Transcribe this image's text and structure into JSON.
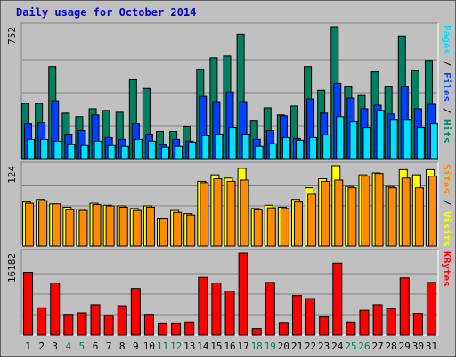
{
  "chart_data": {
    "type": "bar",
    "title": "Daily usage for October 2014",
    "categories": [
      "1",
      "2",
      "3",
      "4",
      "5",
      "6",
      "7",
      "8",
      "9",
      "10",
      "11",
      "12",
      "13",
      "14",
      "15",
      "16",
      "17",
      "18",
      "19",
      "20",
      "21",
      "22",
      "23",
      "24",
      "25",
      "26",
      "27",
      "28",
      "29",
      "30",
      "31"
    ],
    "weekend_days": [
      4,
      5,
      11,
      12,
      18,
      19,
      25,
      26
    ],
    "colors": {
      "title": "#0000cc",
      "hits": "#00805f",
      "files": "#0040ff",
      "pages": "#00e0ff",
      "visits": "#ffff00",
      "sites": "#ff8c00",
      "kbytes": "#ff0000",
      "weekday_label": "#000000",
      "weekend_label": "#00805f",
      "panel_bg": "#c0c0c0",
      "grid": "#808080"
    },
    "panels": [
      {
        "id": "hits-files-pages",
        "max_label": "752",
        "ylim": [
          0,
          752
        ],
        "legend": [
          {
            "text": "Pages",
            "color": "#00e0ff"
          },
          {
            "text": " / ",
            "color": "#000000"
          },
          {
            "text": "Files",
            "color": "#0040ff"
          },
          {
            "text": " / ",
            "color": "#000000"
          },
          {
            "text": "Hits",
            "color": "#00805f"
          }
        ],
        "series": [
          {
            "name": "Hits",
            "color": "#00805f",
            "values": [
              315,
              315,
              525,
              260,
              240,
              285,
              275,
              265,
              450,
              400,
              155,
              155,
              185,
              510,
              575,
              585,
              710,
              215,
              290,
              250,
              300,
              525,
              390,
              752,
              410,
              360,
              495,
              410,
              700,
              500,
              560
            ]
          },
          {
            "name": "Files",
            "color": "#0040ff",
            "values": [
              200,
              205,
              330,
              140,
              160,
              250,
              120,
              110,
              200,
              140,
              80,
              110,
              100,
              355,
              325,
              380,
              325,
              110,
              160,
              245,
              115,
              340,
              260,
              430,
              345,
              285,
              305,
              255,
              410,
              285,
              310
            ]
          },
          {
            "name": "Pages",
            "color": "#00e0ff",
            "values": [
              110,
              110,
              100,
              80,
              75,
              100,
              75,
              70,
              110,
              100,
              65,
              70,
              95,
              130,
              140,
              175,
              140,
              70,
              85,
              120,
              105,
              120,
              135,
              240,
              210,
              175,
              275,
              220,
              220,
              175,
              200
            ]
          }
        ]
      },
      {
        "id": "visits-sites",
        "max_label": "124",
        "ylim": [
          0,
          124
        ],
        "legend": [
          {
            "text": "Sites",
            "color": "#ff8c00"
          },
          {
            "text": " / ",
            "color": "#000000"
          },
          {
            "text": "Visits",
            "color": "#ffff00"
          }
        ],
        "series": [
          {
            "name": "Visits",
            "color": "#ffff00",
            "values": [
              68,
              72,
              65,
              60,
              57,
              66,
              63,
              62,
              58,
              62,
              42,
              55,
              50,
              100,
              110,
              105,
              120,
              58,
              63,
              60,
              72,
              90,
              104,
              124,
              92,
              110,
              113,
              92,
              118,
              110,
              118
            ]
          },
          {
            "name": "Sites",
            "color": "#ff8c00",
            "values": [
              66,
              70,
              65,
              56,
              55,
              64,
              62,
              60,
              55,
              60,
              42,
              52,
              48,
              98,
              104,
              100,
              102,
              56,
              59,
              58,
              68,
              80,
              100,
              102,
              90,
              108,
              112,
              90,
              105,
              90,
              108
            ]
          }
        ]
      },
      {
        "id": "kbytes",
        "max_label": "16182",
        "ylim": [
          0,
          16182
        ],
        "legend": [
          {
            "text": "KBytes",
            "color": "#ff0000"
          }
        ],
        "series": [
          {
            "name": "KBytes",
            "color": "#ff0000",
            "values": [
              12400,
              5400,
              10300,
              4100,
              4400,
              6000,
              3900,
              5800,
              9200,
              4100,
              2400,
              2400,
              2600,
              11400,
              10300,
              8700,
              16182,
              1300,
              10400,
              2500,
              7800,
              7200,
              3600,
              14200,
              2600,
              4900,
              6000,
              5200,
              11300,
              4300,
              10400
            ]
          }
        ]
      }
    ]
  }
}
